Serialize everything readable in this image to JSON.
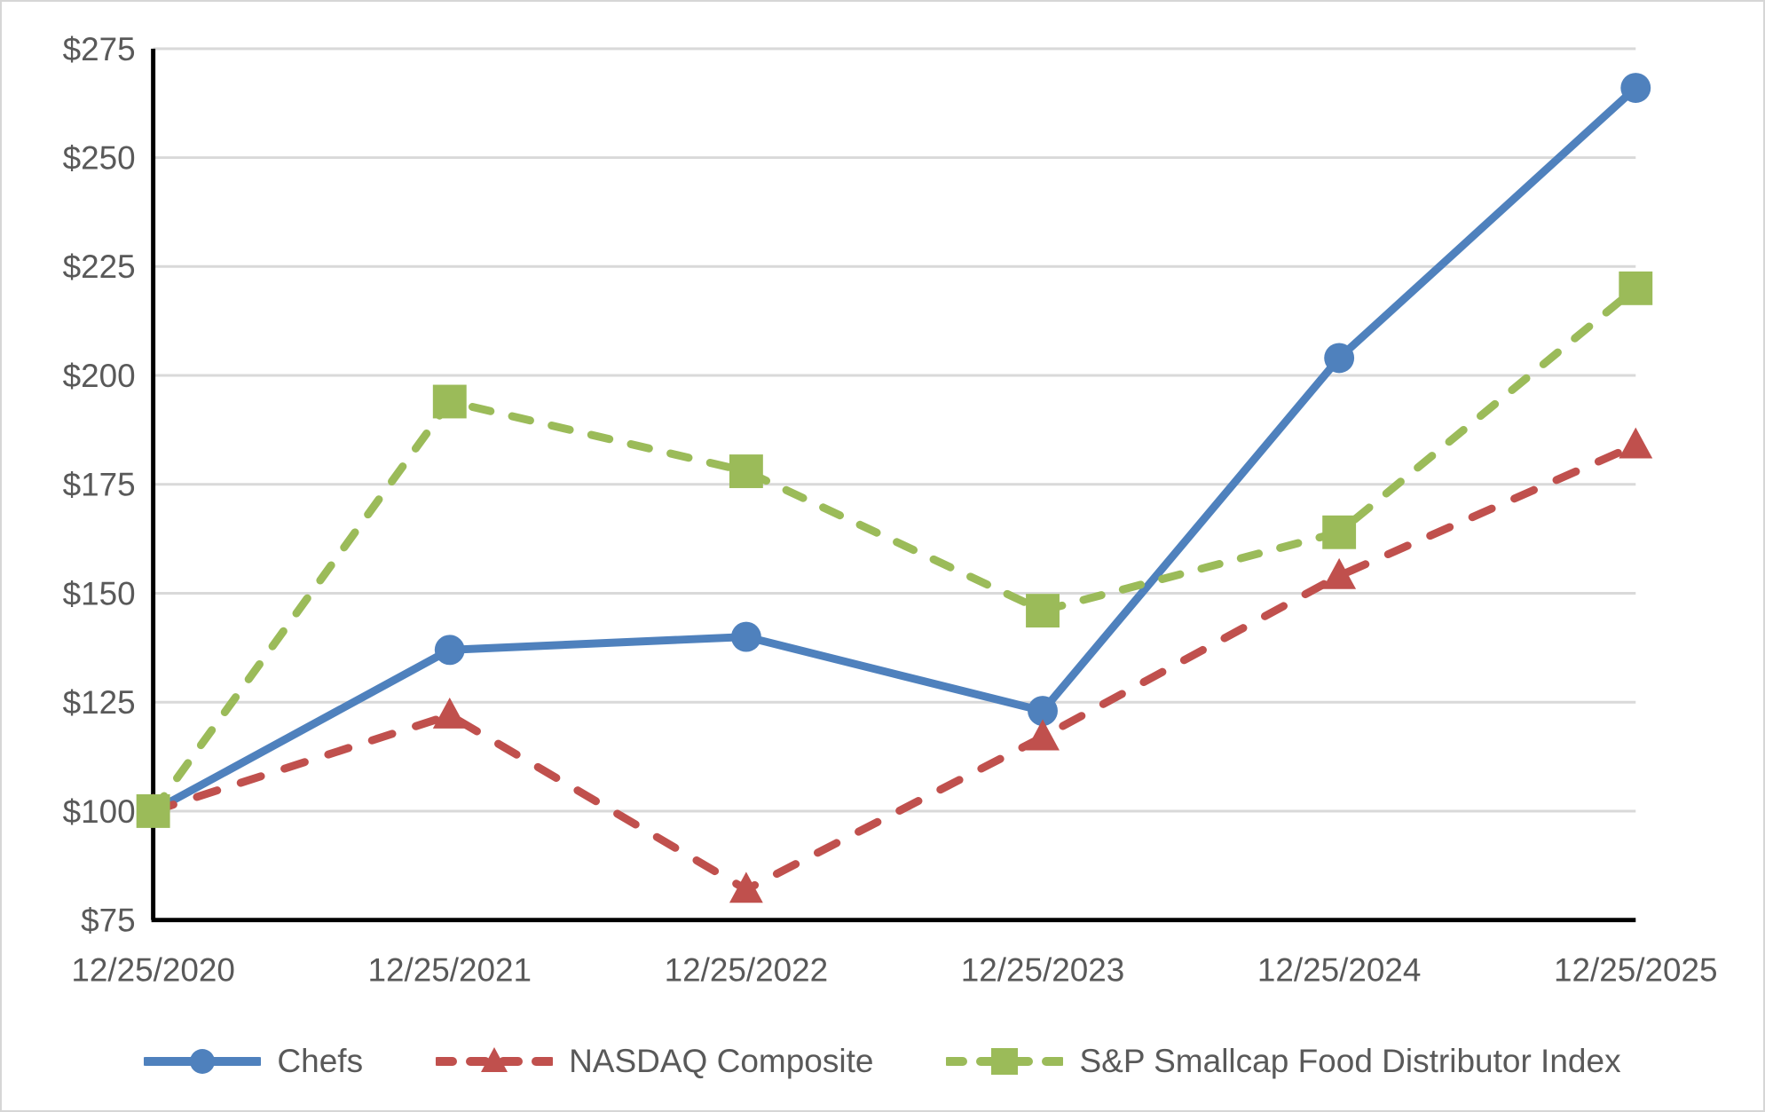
{
  "chart_data": {
    "type": "line",
    "title": "",
    "xlabel": "",
    "ylabel": "",
    "categories": [
      "12/25/2020",
      "12/25/2021",
      "12/25/2022",
      "12/25/2023",
      "12/25/2024",
      "12/25/2025"
    ],
    "series": [
      {
        "name": "Chefs",
        "color": "#4F81BD",
        "line_style": "solid",
        "marker": "circle",
        "values": [
          100,
          137,
          140,
          123,
          204,
          266
        ]
      },
      {
        "name": "NASDAQ Composite",
        "color": "#C0504D",
        "line_style": "dashed",
        "marker": "triangle",
        "values": [
          100,
          122,
          82,
          117,
          154,
          184
        ]
      },
      {
        "name": "S&P Smallcap Food Distributor Index",
        "color": "#9BBB59",
        "line_style": "dashed",
        "marker": "square",
        "values": [
          100,
          194,
          178,
          146,
          164,
          220
        ]
      }
    ],
    "y_ticks": [
      "$275",
      "$250",
      "$225",
      "$200",
      "$175",
      "$150",
      "$125",
      "$100",
      "$75"
    ],
    "y_tick_values": [
      275,
      250,
      225,
      200,
      175,
      150,
      125,
      100,
      75
    ],
    "ylim": [
      75,
      275
    ],
    "grid": "horizontal",
    "legend_position": "bottom",
    "colors": {
      "gridline": "#D9D9D9",
      "axis": "#000000",
      "tick_text": "#595959",
      "background": "#FFFFFF"
    }
  }
}
